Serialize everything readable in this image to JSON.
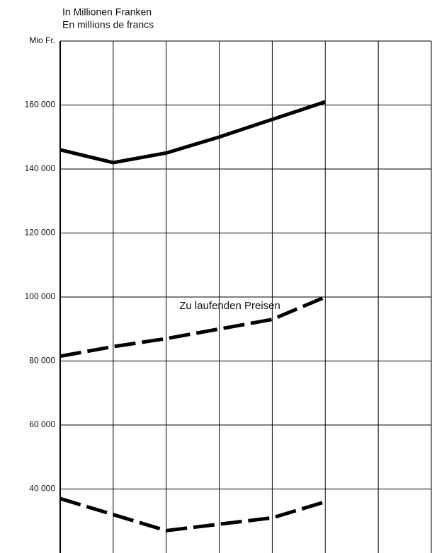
{
  "chart_data": {
    "type": "line",
    "title": [
      "In Millionen Franken",
      "En millions de francs"
    ],
    "categories": [
      null,
      null,
      null,
      null,
      null,
      null,
      null,
      null
    ],
    "ylim": [
      20000,
      180000
    ],
    "yticks": [
      {
        "value": 40000,
        "label": "40 000"
      },
      {
        "value": 60000,
        "label": "60 000"
      },
      {
        "value": 80000,
        "label": "80 000"
      },
      {
        "value": 100000,
        "label": "100 000"
      },
      {
        "value": 120000,
        "label": "120 000"
      },
      {
        "value": 140000,
        "label": "140 000"
      },
      {
        "value": 160000,
        "label": "160 000"
      },
      {
        "value": 180000,
        "label": "Mio Fr."
      }
    ],
    "grid": true,
    "series": [
      {
        "color": "#000000",
        "style": "solid",
        "values": [
          146000,
          142000,
          145000,
          150000,
          155500,
          161000,
          null,
          null
        ]
      },
      {
        "name": "Zu laufenden Preisen",
        "color": "#000000",
        "style": "dashed",
        "values": [
          81500,
          84500,
          87000,
          90000,
          93000,
          100000,
          null,
          null
        ]
      },
      {
        "color": "#000000",
        "style": "dashed",
        "values": [
          37000,
          32000,
          27000,
          29000,
          31000,
          36000,
          null,
          null
        ]
      }
    ]
  }
}
